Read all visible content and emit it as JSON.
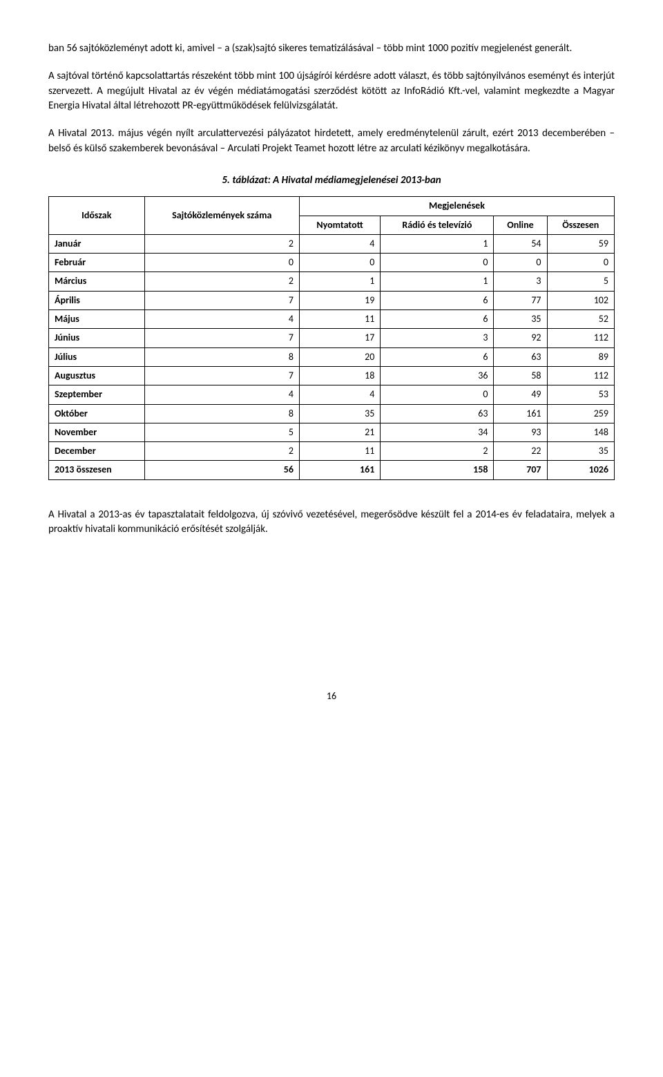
{
  "paragraphs": {
    "p1": "ban 56 sajtóközleményt adott ki, amivel – a (szak)sajtó sikeres tematizálásával – több mint 1000 pozitív megjelenést generált.",
    "p2": "A sajtóval történő kapcsolattartás részeként több mint 100 újságírói kérdésre adott választ, és több sajtónyilvános eseményt és interjút szervezett. A megújult Hivatal az év végén médiatámogatási szerződést kötött az InfoRádió Kft.-vel, valamint megkezdte a Magyar Energia Hivatal által létrehozott PR-együttműködések felülvizsgálatát.",
    "p3": "A Hivatal 2013. május végén nyílt arculattervezési pályázatot hirdetett, amely eredménytelenül zárult, ezért 2013 decemberében – belső és külső szakemberek bevonásával – Arculati Projekt Teamet hozott létre az arculati kézikönyv megalkotására.",
    "p4": "A Hivatal a 2013-as év tapasztalatait feldolgozva, új szóvivő vezetésével, megerősödve készült fel a 2014-es év feladataira, melyek a proaktív hivatali kommunikáció erősítését szolgálják."
  },
  "table": {
    "caption": "5. táblázat: A Hivatal médiamegjelenései 2013-ban",
    "header": {
      "col_period": "Időszak",
      "col_press": "Sajtóközlemények száma",
      "group_appear": "Megjelenések",
      "col_print": "Nyomtatott",
      "col_radio_tv": "Rádió és televízió",
      "col_online": "Online",
      "col_total": "Összesen"
    },
    "rows": [
      {
        "label": "Január",
        "press": "2",
        "print": "4",
        "radio": "1",
        "online": "54",
        "total": "59"
      },
      {
        "label": "Február",
        "press": "0",
        "print": "0",
        "radio": "0",
        "online": "0",
        "total": "0"
      },
      {
        "label": "Március",
        "press": "2",
        "print": "1",
        "radio": "1",
        "online": "3",
        "total": "5"
      },
      {
        "label": "Április",
        "press": "7",
        "print": "19",
        "radio": "6",
        "online": "77",
        "total": "102"
      },
      {
        "label": "Május",
        "press": "4",
        "print": "11",
        "radio": "6",
        "online": "35",
        "total": "52"
      },
      {
        "label": "Június",
        "press": "7",
        "print": "17",
        "radio": "3",
        "online": "92",
        "total": "112"
      },
      {
        "label": "Július",
        "press": "8",
        "print": "20",
        "radio": "6",
        "online": "63",
        "total": "89"
      },
      {
        "label": "Augusztus",
        "press": "7",
        "print": "18",
        "radio": "36",
        "online": "58",
        "total": "112"
      },
      {
        "label": "Szeptember",
        "press": "4",
        "print": "4",
        "radio": "0",
        "online": "49",
        "total": "53"
      },
      {
        "label": "Október",
        "press": "8",
        "print": "35",
        "radio": "63",
        "online": "161",
        "total": "259"
      },
      {
        "label": "November",
        "press": "5",
        "print": "21",
        "radio": "34",
        "online": "93",
        "total": "148"
      },
      {
        "label": "December",
        "press": "2",
        "print": "11",
        "radio": "2",
        "online": "22",
        "total": "35"
      }
    ],
    "total_row": {
      "label": "2013 összesen",
      "press": "56",
      "print": "161",
      "radio": "158",
      "online": "707",
      "total": "1026"
    }
  },
  "page_number": "16"
}
